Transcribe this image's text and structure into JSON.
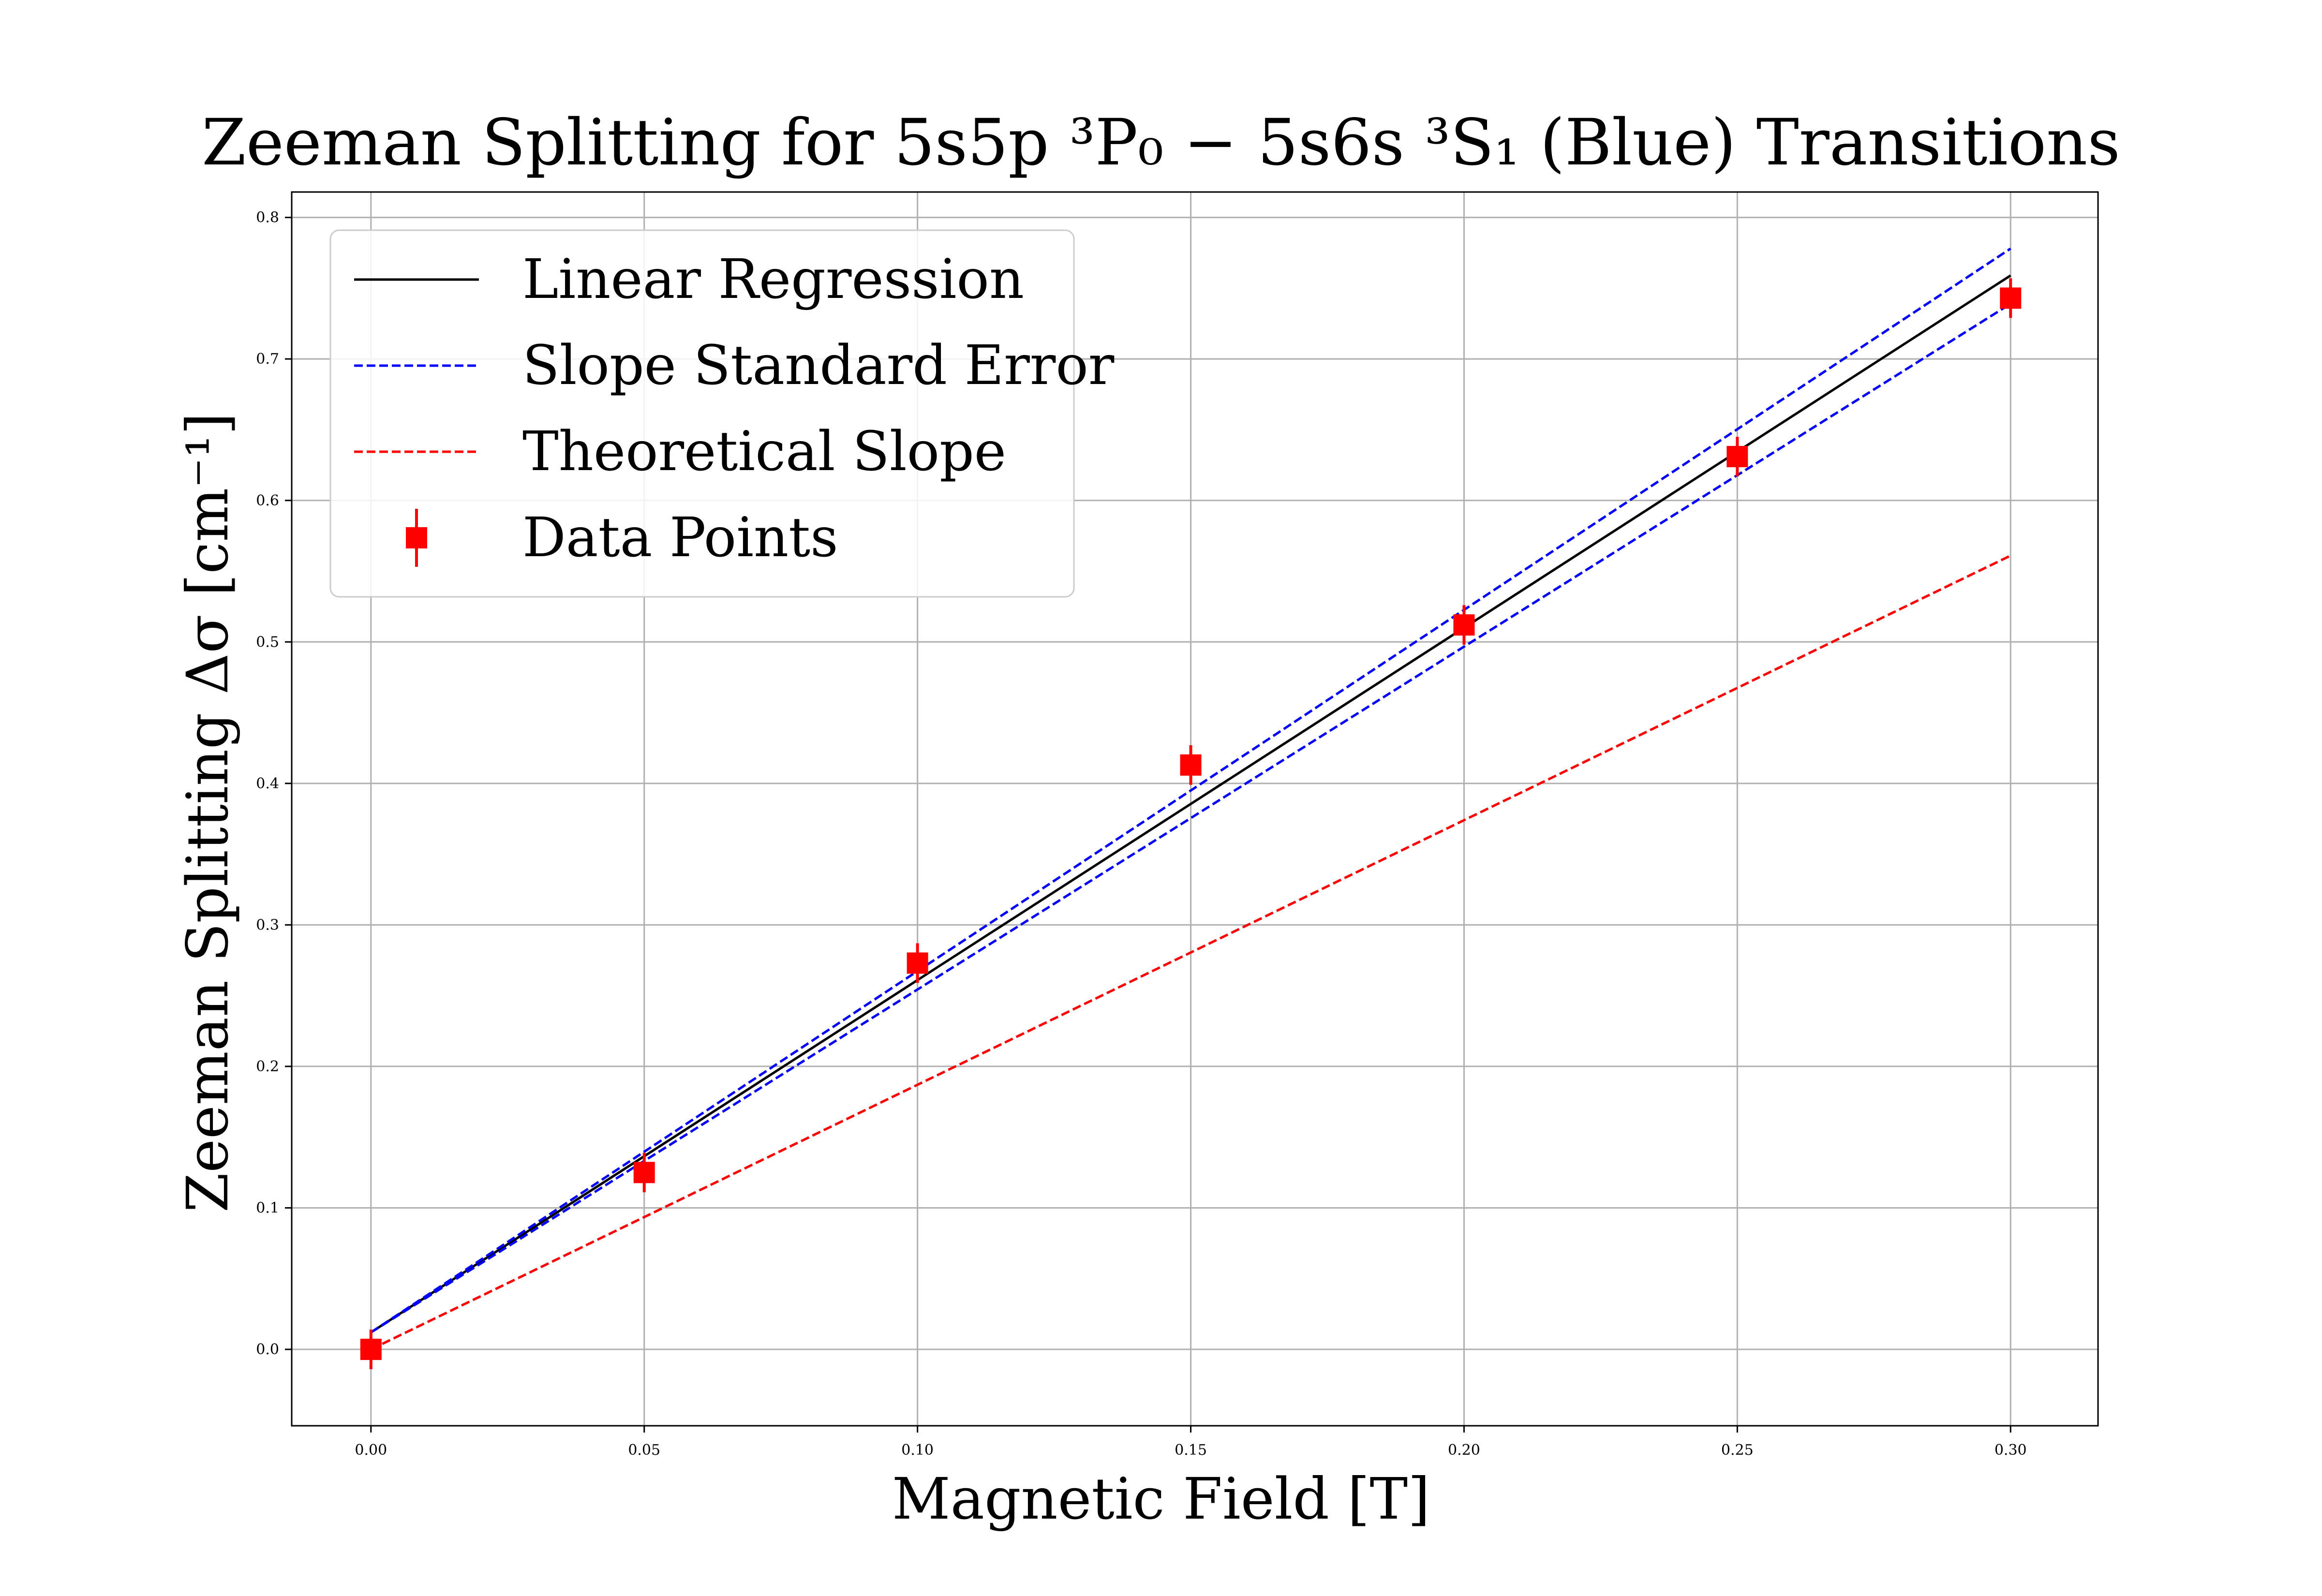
{
  "chart_data": {
    "type": "line",
    "title": "Zeeman Splitting for  5s5p ³P₀ − 5s6s ³S₁ (Blue) Transitions",
    "xlabel": "Magnetic Field  [T]",
    "ylabel": "Zeeman Splitting  Δσ   [cm⁻¹]",
    "xlim": [
      -0.0145,
      0.316
    ],
    "ylim": [
      -0.054,
      0.818
    ],
    "xticks": [
      0.0,
      0.05,
      0.1,
      0.15,
      0.2,
      0.25,
      0.3
    ],
    "xtick_labels": [
      "0.00",
      "0.05",
      "0.10",
      "0.15",
      "0.20",
      "0.25",
      "0.30"
    ],
    "yticks": [
      0.0,
      0.1,
      0.2,
      0.3,
      0.4,
      0.5,
      0.6,
      0.7,
      0.8
    ],
    "ytick_labels": [
      "0.0",
      "0.1",
      "0.2",
      "0.3",
      "0.4",
      "0.5",
      "0.6",
      "0.7",
      "0.8"
    ],
    "grid": true,
    "legend_position": "top-left",
    "series": [
      {
        "name": "Linear Regression",
        "kind": "line",
        "style": "solid",
        "color": "#000000",
        "x": [
          0.0,
          0.3
        ],
        "y": [
          0.012,
          0.759
        ]
      },
      {
        "name": "Slope Standard Error",
        "kind": "line",
        "style": "dashed",
        "color": "#0000ff",
        "x": [
          0.0,
          0.3
        ],
        "y": [
          0.012,
          0.778
        ]
      },
      {
        "name": "",
        "kind": "line",
        "style": "dashed",
        "color": "#0000ff",
        "x": [
          0.0,
          0.3
        ],
        "y": [
          0.012,
          0.739
        ]
      },
      {
        "name": "Theoretical Slope",
        "kind": "line",
        "style": "dashed",
        "color": "#ff0000",
        "x": [
          0.0,
          0.3
        ],
        "y": [
          0.0,
          0.561
        ]
      },
      {
        "name": "Data Points",
        "kind": "errorbar",
        "color": "#ff0000",
        "x": [
          0.0,
          0.05,
          0.1,
          0.15,
          0.2,
          0.25,
          0.3
        ],
        "y": [
          0.0,
          0.125,
          0.273,
          0.413,
          0.512,
          0.631,
          0.743
        ],
        "yerr": [
          0.014,
          0.014,
          0.014,
          0.014,
          0.014,
          0.014,
          0.014
        ]
      }
    ]
  }
}
